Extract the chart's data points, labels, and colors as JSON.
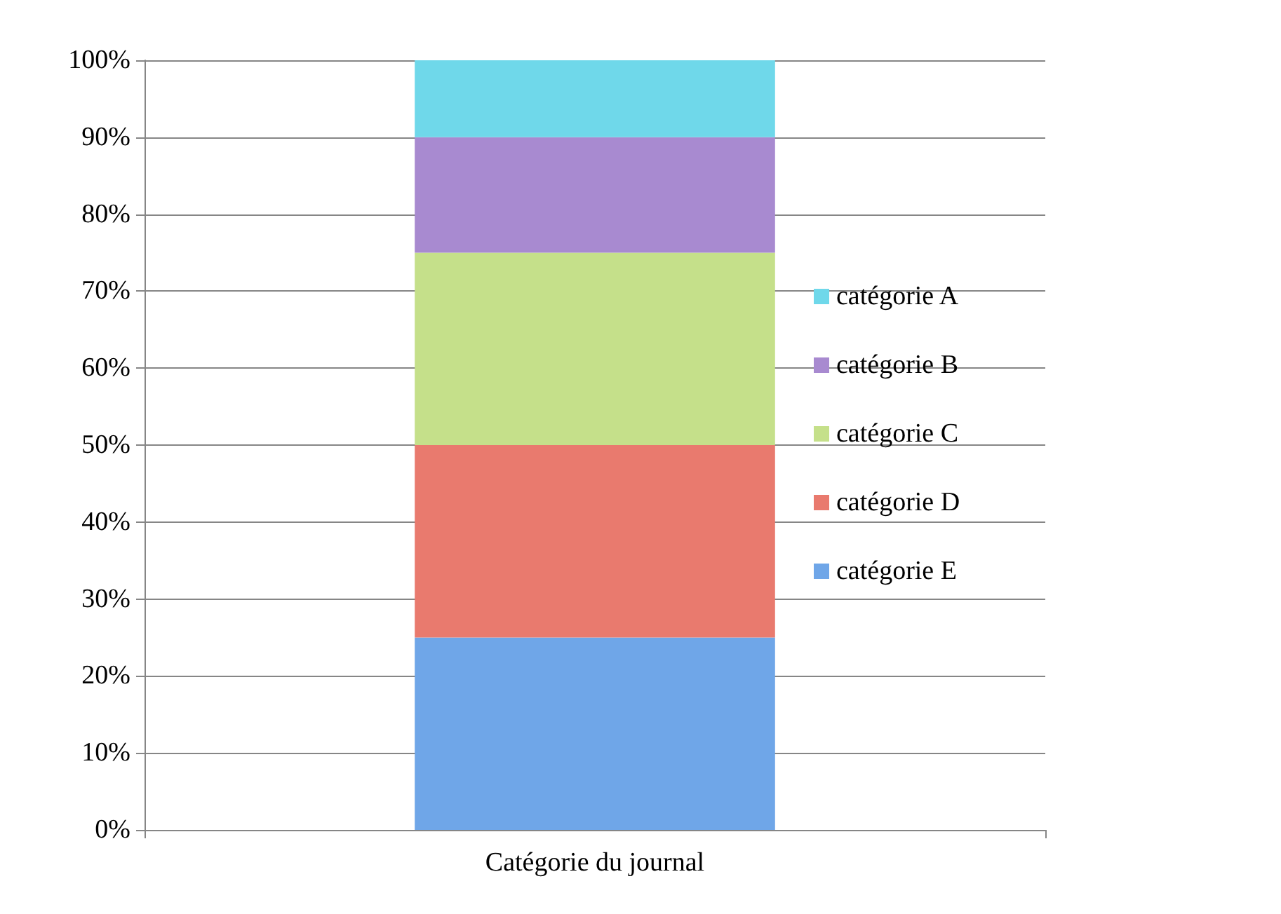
{
  "chart_data": {
    "type": "bar",
    "stacked": true,
    "categories": [
      "Catégorie du journal"
    ],
    "series": [
      {
        "name": "catégorie E",
        "color": "#6fa6e8",
        "values": [
          25
        ]
      },
      {
        "name": "catégorie D",
        "color": "#e97a6e",
        "values": [
          25
        ]
      },
      {
        "name": "catégorie C",
        "color": "#c5e08a",
        "values": [
          25
        ]
      },
      {
        "name": "catégorie B",
        "color": "#a88ad0",
        "values": [
          15
        ]
      },
      {
        "name": "catégorie A",
        "color": "#6fd8ea",
        "values": [
          10
        ]
      }
    ],
    "ylim": [
      0,
      100
    ],
    "yticks": [
      {
        "value": 0,
        "label": "0%"
      },
      {
        "value": 10,
        "label": "10%"
      },
      {
        "value": 20,
        "label": "20%"
      },
      {
        "value": 30,
        "label": "30%"
      },
      {
        "value": 40,
        "label": "40%"
      },
      {
        "value": 50,
        "label": "50%"
      },
      {
        "value": 60,
        "label": "60%"
      },
      {
        "value": 70,
        "label": "70%"
      },
      {
        "value": 80,
        "label": "80%"
      },
      {
        "value": 90,
        "label": "90%"
      },
      {
        "value": 100,
        "label": "100%"
      }
    ],
    "grid": "y",
    "legend": "right"
  }
}
